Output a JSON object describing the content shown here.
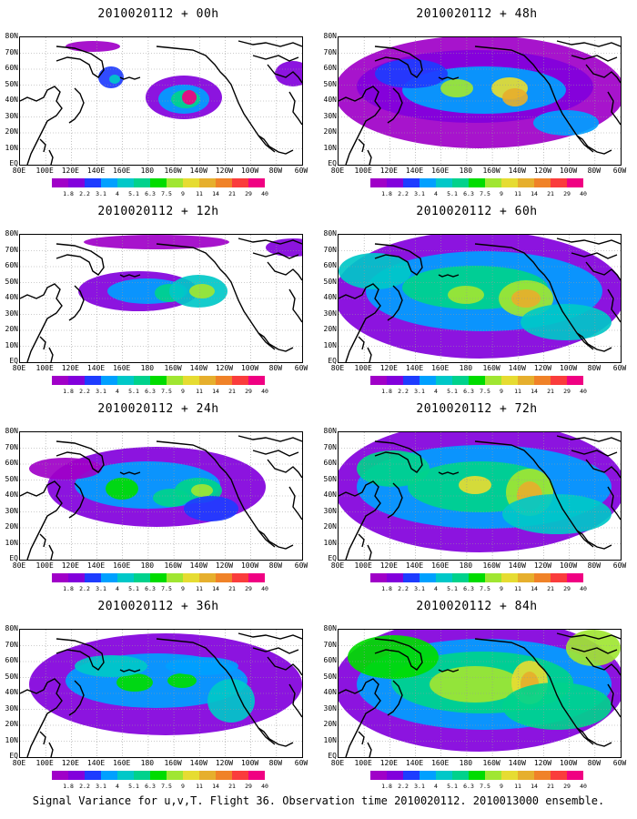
{
  "panels": [
    {
      "title": "2010020112 + 00h",
      "col": 0,
      "row": 0,
      "intensity": 0
    },
    {
      "title": "2010020112 + 48h",
      "col": 1,
      "row": 0,
      "intensity": 4
    },
    {
      "title": "2010020112 + 12h",
      "col": 0,
      "row": 1,
      "intensity": 1
    },
    {
      "title": "2010020112 + 60h",
      "col": 1,
      "row": 1,
      "intensity": 5
    },
    {
      "title": "2010020112 + 24h",
      "col": 0,
      "row": 2,
      "intensity": 2
    },
    {
      "title": "2010020112 + 72h",
      "col": 1,
      "row": 2,
      "intensity": 6
    },
    {
      "title": "2010020112 + 36h",
      "col": 0,
      "row": 3,
      "intensity": 3
    },
    {
      "title": "2010020112 + 84h",
      "col": 1,
      "row": 3,
      "intensity": 7
    }
  ],
  "lat_labels": [
    "80N",
    "70N",
    "60N",
    "50N",
    "40N",
    "30N",
    "20N",
    "10N",
    "EQ"
  ],
  "lon_labels": [
    "80E",
    "100E",
    "120E",
    "140E",
    "160E",
    "180",
    "160W",
    "140W",
    "120W",
    "100W",
    "80W",
    "60W"
  ],
  "colorbar": {
    "labels": [
      "1.8",
      "2.2",
      "3.1",
      "4",
      "5.1",
      "6.3",
      "7.5",
      "9",
      "11",
      "14",
      "21",
      "29",
      "40"
    ],
    "colors": [
      "#a000c8",
      "#8200dc",
      "#1e3cff",
      "#00a0ff",
      "#00c8c8",
      "#00d28c",
      "#00dc00",
      "#a0e632",
      "#e6dc32",
      "#e6af2d",
      "#f08228",
      "#fa3c3c",
      "#f00082"
    ]
  },
  "footer": "Signal Variance for u,v,T. Flight 36. Observation time 2010020112. 2010013000 ensemble."
}
